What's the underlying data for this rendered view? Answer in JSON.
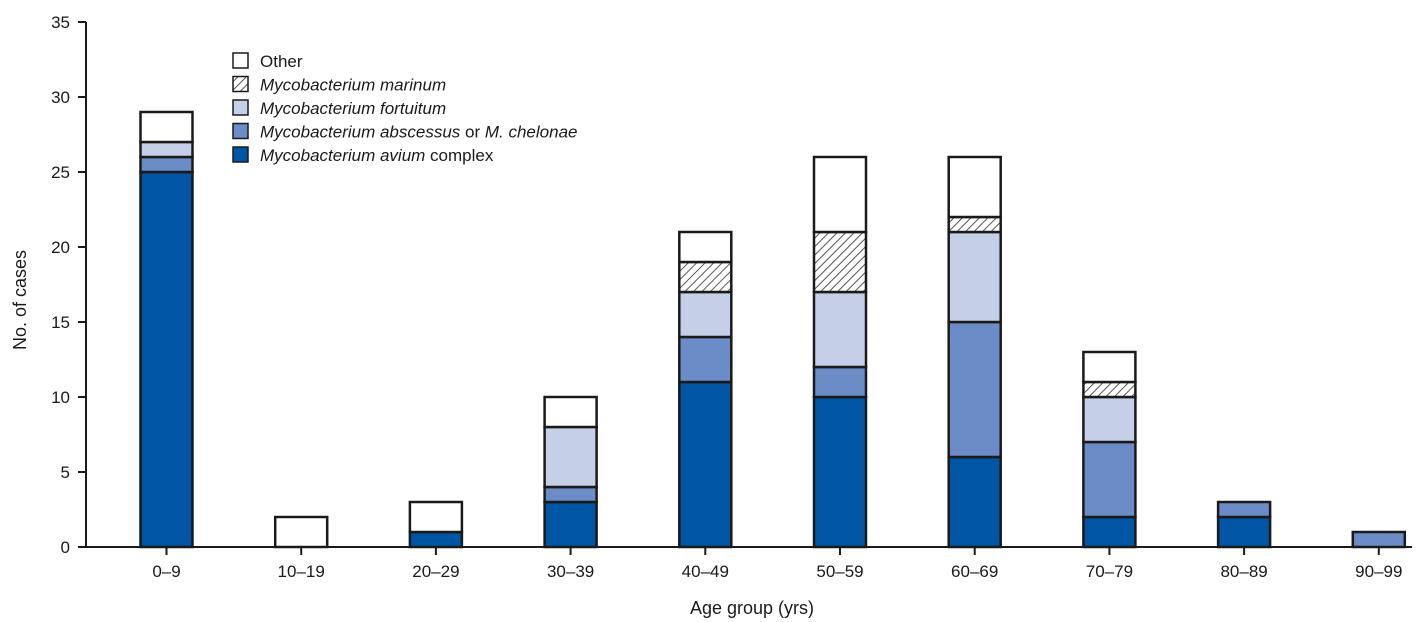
{
  "chart_data": {
    "type": "bar",
    "stacked": true,
    "xlabel": "Age group (yrs)",
    "ylabel": "No. of cases",
    "ylim": [
      0,
      35
    ],
    "yticks": [
      0,
      5,
      10,
      15,
      20,
      25,
      30,
      35
    ],
    "grid": false,
    "legend_position": "top-left",
    "categories": [
      "0–9",
      "10–19",
      "20–29",
      "30–39",
      "40–49",
      "50–59",
      "60–69",
      "70–79",
      "80–89",
      "90–99"
    ],
    "series": [
      {
        "key": "mac",
        "legend_parts": [
          {
            "text": "Mycobacterium avium",
            "italic": true
          },
          {
            "text": " complex",
            "italic": false
          }
        ],
        "color": "#0055a5",
        "pattern": "solid",
        "values": [
          25,
          0,
          1,
          3,
          11,
          10,
          6,
          2,
          2,
          0
        ]
      },
      {
        "key": "abscessus",
        "legend_parts": [
          {
            "text": "Mycobacterium abscessus",
            "italic": true
          },
          {
            "text": " or ",
            "italic": false
          },
          {
            "text": "M. chelonae",
            "italic": true
          }
        ],
        "color": "#6b8cc7",
        "pattern": "solid",
        "values": [
          1,
          0,
          0,
          1,
          3,
          2,
          9,
          5,
          1,
          1
        ]
      },
      {
        "key": "fortuitum",
        "legend_parts": [
          {
            "text": "Mycobacterium fortuitum",
            "italic": true
          }
        ],
        "color": "#c5d0e8",
        "pattern": "solid",
        "values": [
          1,
          0,
          0,
          4,
          3,
          5,
          6,
          3,
          0,
          0
        ]
      },
      {
        "key": "marinum",
        "legend_parts": [
          {
            "text": "Mycobacterium marinum",
            "italic": true
          }
        ],
        "color": "#ffffff",
        "pattern": "hatch",
        "values": [
          0,
          0,
          0,
          0,
          2,
          4,
          1,
          1,
          0,
          0
        ]
      },
      {
        "key": "other",
        "legend_parts": [
          {
            "text": "Other",
            "italic": false
          }
        ],
        "color": "#ffffff",
        "pattern": "solid",
        "values": [
          2,
          2,
          2,
          2,
          2,
          5,
          4,
          2,
          0,
          0
        ]
      }
    ]
  }
}
